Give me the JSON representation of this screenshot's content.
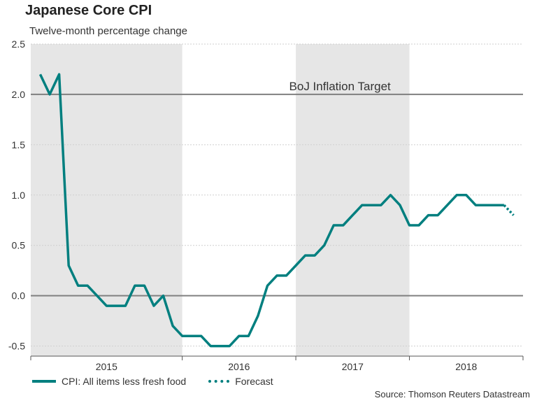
{
  "chart_data": {
    "type": "line",
    "title": "Japanese Core CPI",
    "subtitle": "Twelve-month percentage change",
    "xlabel": "",
    "ylabel": "",
    "ylim": [
      -0.6,
      2.5
    ],
    "yticks": [
      -0.5,
      0.0,
      0.5,
      1.0,
      1.5,
      2.0,
      2.5
    ],
    "ytick_labels": [
      "-0.5",
      "0.0",
      "0.5",
      "1.0",
      "1.5",
      "2.0",
      "2.5"
    ],
    "year_labels": [
      "2015",
      "2016",
      "2017",
      "2018"
    ],
    "shaded_years": [
      "2015",
      "2017"
    ],
    "series": [
      {
        "name": "CPI: All items less fresh food",
        "style": "solid",
        "color": "#007f7f",
        "x": [
          "2014-09",
          "2014-10",
          "2014-11",
          "2014-12",
          "2015-01",
          "2015-02",
          "2015-03",
          "2015-04",
          "2015-05",
          "2015-06",
          "2015-07",
          "2015-08",
          "2015-09",
          "2015-10",
          "2015-11",
          "2015-12",
          "2016-01",
          "2016-02",
          "2016-03",
          "2016-04",
          "2016-05",
          "2016-06",
          "2016-07",
          "2016-08",
          "2016-09",
          "2016-10",
          "2016-11",
          "2016-12",
          "2017-01",
          "2017-02",
          "2017-03",
          "2017-04",
          "2017-05",
          "2017-06",
          "2017-07",
          "2017-08",
          "2017-09",
          "2017-10",
          "2017-11",
          "2017-12",
          "2018-01",
          "2018-02",
          "2018-03",
          "2018-04",
          "2018-05",
          "2018-06",
          "2018-07",
          "2018-08",
          "2018-09",
          "2018-10"
        ],
        "values": [
          2.2,
          2.0,
          2.2,
          0.3,
          0.1,
          0.1,
          0.0,
          -0.1,
          -0.1,
          -0.1,
          0.1,
          0.1,
          -0.1,
          0.0,
          -0.3,
          -0.4,
          -0.4,
          -0.4,
          -0.5,
          -0.5,
          -0.5,
          -0.4,
          -0.4,
          -0.2,
          0.1,
          0.2,
          0.2,
          0.3,
          0.4,
          0.4,
          0.5,
          0.7,
          0.7,
          0.8,
          0.9,
          0.9,
          0.9,
          1.0,
          0.9,
          0.7,
          0.7,
          0.8,
          0.8,
          0.9,
          1.0,
          1.0,
          0.9,
          0.9,
          0.9,
          0.9
        ]
      },
      {
        "name": "Forecast",
        "style": "dotted",
        "color": "#007f7f",
        "x": [
          "2018-10",
          "2018-11"
        ],
        "values": [
          0.9,
          0.8
        ]
      }
    ],
    "reference_lines": [
      {
        "y": 2.0,
        "label": "BoJ Inflation Target",
        "color": "#808080"
      },
      {
        "y": 0.0,
        "label": "",
        "color": "#808080"
      }
    ],
    "legend": [
      "CPI: All items less fresh food",
      "Forecast"
    ],
    "legend_position": "bottom-left"
  },
  "source": "Source: Thomson Reuters Datastream"
}
